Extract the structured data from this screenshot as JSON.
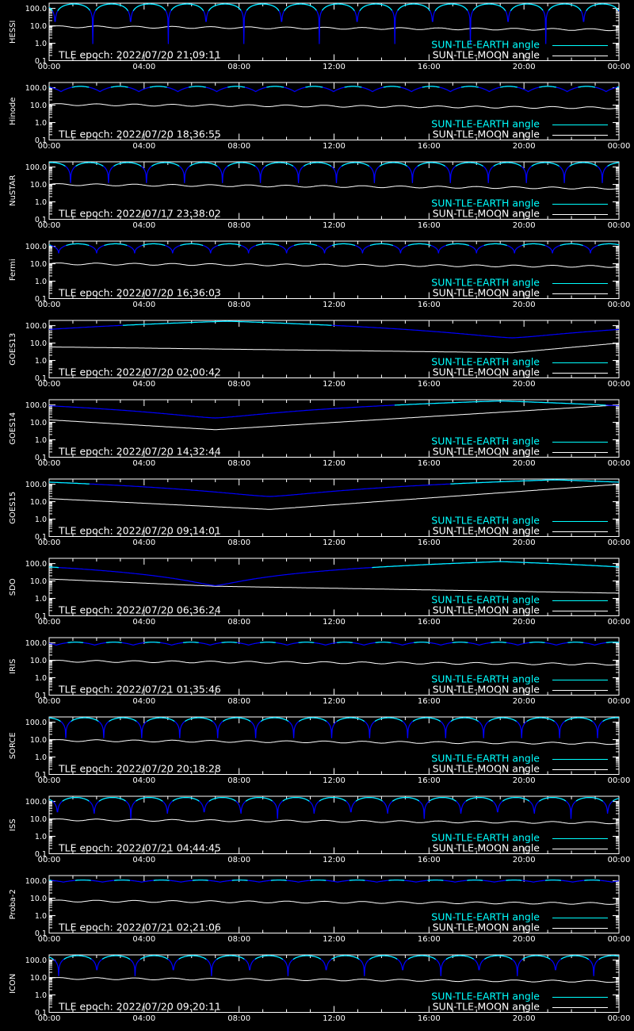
{
  "chart_data": {
    "type": "line",
    "y_scale": "log",
    "ylim": [
      0.1,
      200
    ],
    "y_ticks": [
      "100.0",
      "10.0",
      "1.0",
      "0.1"
    ],
    "x_ticks": [
      "00:00",
      "04:00",
      "08:00",
      "12:00",
      "16:00",
      "20:00",
      "00:00"
    ],
    "x_range_hours": [
      0,
      24
    ],
    "grid": false,
    "legend_position": "bottom-right",
    "legend": {
      "earth_label": "SUN-TLE-EARTH angle",
      "moon_label": "SUN-TLE-MOON angle"
    },
    "colors": {
      "background": "#000000",
      "axes": "#ffffff",
      "earth_sunlit": "#00ffff",
      "earth_occulted": "#0000ff",
      "moon": "#ffffff"
    },
    "panels": [
      {
        "satellite": "HESSI",
        "epoch": "TLE epoch: 2022/07/20 21:09:11",
        "orbit": "leo",
        "period_h": 1.59,
        "phase_h": 0.25,
        "peak": 180,
        "trough": 0.9,
        "moon_start": 9,
        "moon_end": 6
      },
      {
        "satellite": "Hinode",
        "epoch": "TLE epoch: 2022/07/20 18:36:55",
        "orbit": "sunsync",
        "period_h": 1.64,
        "phase_h": 0.5,
        "peak": 120,
        "trough": 60,
        "moon_start": 11,
        "moon_end": 7
      },
      {
        "satellite": "NuSTAR",
        "epoch": "TLE epoch: 2022/07/17 23:38:02",
        "orbit": "leo",
        "period_h": 1.6,
        "phase_h": 0.9,
        "peak": 180,
        "trough": 12,
        "moon_start": 10,
        "moon_end": 6
      },
      {
        "satellite": "Fermi",
        "epoch": "TLE epoch: 2022/07/20 16:36:03",
        "orbit": "leo",
        "period_h": 1.6,
        "phase_h": 0.4,
        "peak": 140,
        "trough": 40,
        "moon_start": 10,
        "moon_end": 7
      },
      {
        "satellite": "GOES13",
        "epoch": "TLE epoch: 2022/07/20 02:00:42",
        "orbit": "geo",
        "min_h": 19.5,
        "peak": 180,
        "trough": 20,
        "moon_start": 6,
        "moon_min": 2.8,
        "moon_end": 10
      },
      {
        "satellite": "GOES14",
        "epoch": "TLE epoch: 2022/07/20 14:32:44",
        "orbit": "geo",
        "min_h": 7.0,
        "peak": 170,
        "trough": 18,
        "moon_start": 14,
        "moon_min": 3.8,
        "moon_end": 100
      },
      {
        "satellite": "GOES15",
        "epoch": "TLE epoch: 2022/07/20 09:14:01",
        "orbit": "geo",
        "min_h": 9.3,
        "peak": 180,
        "trough": 20,
        "moon_start": 15,
        "moon_min": 3.6,
        "moon_end": 100
      },
      {
        "satellite": "SDO",
        "epoch": "TLE epoch: 2022/07/20 06:36:24",
        "orbit": "geo",
        "min_h": 7.0,
        "peak": 130,
        "trough": 5.5,
        "moon_start": 13,
        "moon_min": 5.0,
        "moon_end": 2.0
      },
      {
        "satellite": "IRIS",
        "epoch": "TLE epoch: 2022/07/21 01:35:46",
        "orbit": "sunsync",
        "period_h": 1.62,
        "phase_h": 0.3,
        "peak": 110,
        "trough": 75,
        "moon_start": 9,
        "moon_end": 6
      },
      {
        "satellite": "SORCE",
        "epoch": "TLE epoch: 2022/07/20 20:18:28",
        "orbit": "leo",
        "period_h": 1.6,
        "phase_h": 0.7,
        "peak": 180,
        "trough": 12,
        "moon_start": 9,
        "moon_end": 6
      },
      {
        "satellite": "ISS",
        "epoch": "TLE epoch: 2022/07/21 04:44:45",
        "orbit": "leo",
        "period_h": 1.545,
        "phase_h": 0.35,
        "peak": 170,
        "trough": 10,
        "moon_start": 9,
        "moon_end": 6
      },
      {
        "satellite": "Proba-2",
        "epoch": "TLE epoch: 2022/07/21 02:21:06",
        "orbit": "sunsync",
        "period_h": 1.65,
        "phase_h": 0.6,
        "peak": 110,
        "trough": 85,
        "moon_start": 7,
        "moon_end": 5
      },
      {
        "satellite": "ICON",
        "epoch": "TLE epoch: 2022/07/20 09:20:11",
        "orbit": "leo",
        "period_h": 1.61,
        "phase_h": 0.4,
        "peak": 180,
        "trough": 12,
        "moon_start": 9,
        "moon_end": 6
      }
    ]
  }
}
